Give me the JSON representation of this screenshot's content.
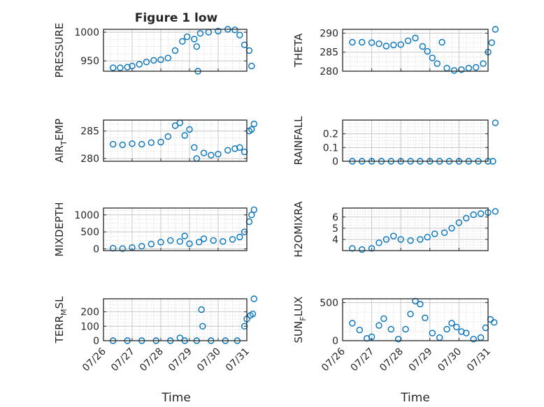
{
  "figure_title": "Figure 1 low",
  "marker_color": "#0072bd",
  "xlabel": "Time",
  "x_ticks": [
    "07/26",
    "07/27",
    "07/28",
    "07/29",
    "07/30",
    "07/31"
  ],
  "chart_data": [
    {
      "type": "scatter",
      "ylabel": "PRESSURE",
      "ylim": [
        932,
        1005
      ],
      "yticks": [
        950,
        1000
      ],
      "xlim": [
        "2018-07-26",
        "2018-07-31"
      ],
      "grid": true,
      "minor_grid": true,
      "points": [
        [
          "2018-07-26T08:00",
          938
        ],
        [
          "2018-07-26T14:00",
          938
        ],
        [
          "2018-07-26T20:00",
          939
        ],
        [
          "2018-07-27T00:00",
          941
        ],
        [
          "2018-07-27T06:00",
          944
        ],
        [
          "2018-07-27T12:00",
          948
        ],
        [
          "2018-07-27T18:00",
          951
        ],
        [
          "2018-07-28T00:00",
          952
        ],
        [
          "2018-07-28T06:00",
          955
        ],
        [
          "2018-07-28T12:00",
          968
        ],
        [
          "2018-07-28T18:00",
          984
        ],
        [
          "2018-07-28T22:00",
          992
        ],
        [
          "2018-07-29T04:00",
          988
        ],
        [
          "2018-07-29T06:00",
          975
        ],
        [
          "2018-07-29T07:00",
          932
        ],
        [
          "2018-07-29T09:00",
          998
        ],
        [
          "2018-07-29T16:00",
          1000
        ],
        [
          "2018-07-30T00:00",
          1002
        ],
        [
          "2018-07-30T08:00",
          1005
        ],
        [
          "2018-07-30T14:00",
          1004
        ],
        [
          "2018-07-30T18:00",
          995
        ],
        [
          "2018-07-30T22:00",
          978
        ],
        [
          "2018-07-31T02:00",
          968
        ],
        [
          "2018-07-31T04:00",
          941
        ]
      ]
    },
    {
      "type": "scatter",
      "ylabel": "THETA",
      "ylim": [
        280,
        291
      ],
      "yticks": [
        280,
        285,
        290
      ],
      "xlim": [
        "2018-07-26",
        "2018-07-31"
      ],
      "grid": true,
      "minor_grid": true,
      "points": [
        [
          "2018-07-26T08:00",
          287.6
        ],
        [
          "2018-07-26T16:00",
          287.6
        ],
        [
          "2018-07-27T00:00",
          287.5
        ],
        [
          "2018-07-27T06:00",
          287.2
        ],
        [
          "2018-07-27T12:00",
          286.6
        ],
        [
          "2018-07-27T18:00",
          286.9
        ],
        [
          "2018-07-28T00:00",
          287.0
        ],
        [
          "2018-07-28T06:00",
          288.0
        ],
        [
          "2018-07-28T12:00",
          288.7
        ],
        [
          "2018-07-28T18:00",
          286.5
        ],
        [
          "2018-07-28T22:00",
          285.2
        ],
        [
          "2018-07-29T02:00",
          283.5
        ],
        [
          "2018-07-29T06:00",
          282.0
        ],
        [
          "2018-07-29T10:00",
          287.6
        ],
        [
          "2018-07-29T14:00",
          280.8
        ],
        [
          "2018-07-29T20:00",
          280.2
        ],
        [
          "2018-07-30T02:00",
          280.4
        ],
        [
          "2018-07-30T08:00",
          280.8
        ],
        [
          "2018-07-30T14:00",
          281.0
        ],
        [
          "2018-07-30T20:00",
          282.0
        ],
        [
          "2018-07-31T00:00",
          285.0
        ],
        [
          "2018-07-31T03:00",
          287.5
        ],
        [
          "2018-07-31T06:00",
          291.0
        ]
      ]
    },
    {
      "type": "scatter",
      "ylabel": "AIR_TEMP",
      "ylim": [
        279.5,
        287
      ],
      "yticks": [
        280,
        285
      ],
      "xlim": [
        "2018-07-26",
        "2018-07-31"
      ],
      "grid": true,
      "minor_grid": true,
      "points": [
        [
          "2018-07-26T08:00",
          282.6
        ],
        [
          "2018-07-26T16:00",
          282.5
        ],
        [
          "2018-07-27T00:00",
          282.7
        ],
        [
          "2018-07-27T08:00",
          282.6
        ],
        [
          "2018-07-27T16:00",
          282.9
        ],
        [
          "2018-07-28T00:00",
          283.0
        ],
        [
          "2018-07-28T06:00",
          284.0
        ],
        [
          "2018-07-28T12:00",
          286.0
        ],
        [
          "2018-07-28T16:00",
          286.5
        ],
        [
          "2018-07-28T20:00",
          284.2
        ],
        [
          "2018-07-29T00:00",
          285.3
        ],
        [
          "2018-07-29T04:00",
          282.0
        ],
        [
          "2018-07-29T06:00",
          280.0
        ],
        [
          "2018-07-29T12:00",
          281.0
        ],
        [
          "2018-07-29T18:00",
          280.6
        ],
        [
          "2018-07-30T00:00",
          280.8
        ],
        [
          "2018-07-30T08:00",
          281.5
        ],
        [
          "2018-07-30T14:00",
          281.8
        ],
        [
          "2018-07-30T18:00",
          282.0
        ],
        [
          "2018-07-30T22:00",
          281.2
        ],
        [
          "2018-07-31T02:00",
          285.0
        ],
        [
          "2018-07-31T04:00",
          285.3
        ],
        [
          "2018-07-31T06:00",
          286.3
        ]
      ]
    },
    {
      "type": "scatter",
      "ylabel": "RAINFALL",
      "ylim": [
        0,
        0.3
      ],
      "yticks": [
        0,
        0.1,
        0.2
      ],
      "xlim": [
        "2018-07-26",
        "2018-07-31"
      ],
      "grid": true,
      "minor_grid": true,
      "points": [
        [
          "2018-07-26T08:00",
          0
        ],
        [
          "2018-07-26T16:00",
          0
        ],
        [
          "2018-07-27T00:00",
          0
        ],
        [
          "2018-07-27T08:00",
          0
        ],
        [
          "2018-07-27T16:00",
          0
        ],
        [
          "2018-07-28T00:00",
          0
        ],
        [
          "2018-07-28T08:00",
          0
        ],
        [
          "2018-07-28T16:00",
          0
        ],
        [
          "2018-07-29T00:00",
          0
        ],
        [
          "2018-07-29T08:00",
          0
        ],
        [
          "2018-07-29T16:00",
          0
        ],
        [
          "2018-07-30T00:00",
          0
        ],
        [
          "2018-07-30T08:00",
          0
        ],
        [
          "2018-07-30T16:00",
          0
        ],
        [
          "2018-07-31T00:00",
          0
        ],
        [
          "2018-07-31T04:00",
          0
        ],
        [
          "2018-07-31T06:00",
          0.28
        ]
      ]
    },
    {
      "type": "scatter",
      "ylabel": "MIXDEPTH",
      "ylim": [
        -50,
        1200
      ],
      "yticks": [
        0,
        500,
        1000
      ],
      "xlim": [
        "2018-07-26",
        "2018-07-31"
      ],
      "grid": true,
      "minor_grid": true,
      "points": [
        [
          "2018-07-26T08:00",
          20
        ],
        [
          "2018-07-26T16:00",
          10
        ],
        [
          "2018-07-27T00:00",
          40
        ],
        [
          "2018-07-27T08:00",
          80
        ],
        [
          "2018-07-27T16:00",
          140
        ],
        [
          "2018-07-28T00:00",
          200
        ],
        [
          "2018-07-28T08:00",
          250
        ],
        [
          "2018-07-28T16:00",
          220
        ],
        [
          "2018-07-28T20:00",
          380
        ],
        [
          "2018-07-29T00:00",
          150
        ],
        [
          "2018-07-29T08:00",
          200
        ],
        [
          "2018-07-29T12:00",
          300
        ],
        [
          "2018-07-29T20:00",
          250
        ],
        [
          "2018-07-30T04:00",
          220
        ],
        [
          "2018-07-30T12:00",
          280
        ],
        [
          "2018-07-30T18:00",
          350
        ],
        [
          "2018-07-30T22:00",
          500
        ],
        [
          "2018-07-31T02:00",
          800
        ],
        [
          "2018-07-31T04:00",
          1000
        ],
        [
          "2018-07-31T06:00",
          1150
        ]
      ]
    },
    {
      "type": "scatter",
      "ylabel": "H2OMIXRA",
      "ylim": [
        3,
        6.8
      ],
      "yticks": [
        4,
        5,
        6
      ],
      "xlim": [
        "2018-07-26",
        "2018-07-31"
      ],
      "grid": true,
      "minor_grid": true,
      "points": [
        [
          "2018-07-26T08:00",
          3.2
        ],
        [
          "2018-07-26T16:00",
          3.1
        ],
        [
          "2018-07-27T00:00",
          3.2
        ],
        [
          "2018-07-27T06:00",
          3.7
        ],
        [
          "2018-07-27T12:00",
          4.0
        ],
        [
          "2018-07-27T18:00",
          4.3
        ],
        [
          "2018-07-28T00:00",
          4.0
        ],
        [
          "2018-07-28T08:00",
          3.9
        ],
        [
          "2018-07-28T16:00",
          4.0
        ],
        [
          "2018-07-28T22:00",
          4.2
        ],
        [
          "2018-07-29T04:00",
          4.5
        ],
        [
          "2018-07-29T12:00",
          4.6
        ],
        [
          "2018-07-29T18:00",
          5.0
        ],
        [
          "2018-07-30T00:00",
          5.5
        ],
        [
          "2018-07-30T06:00",
          5.9
        ],
        [
          "2018-07-30T12:00",
          6.2
        ],
        [
          "2018-07-30T18:00",
          6.3
        ],
        [
          "2018-07-31T00:00",
          6.4
        ],
        [
          "2018-07-31T06:00",
          6.5
        ]
      ]
    },
    {
      "type": "scatter",
      "ylabel": "TERR_MSL",
      "ylim": [
        0,
        290
      ],
      "yticks": [
        0,
        100,
        200
      ],
      "xlim": [
        "2018-07-26",
        "2018-07-31"
      ],
      "grid": true,
      "minor_grid": true,
      "points": [
        [
          "2018-07-26T08:00",
          0
        ],
        [
          "2018-07-26T20:00",
          0
        ],
        [
          "2018-07-27T08:00",
          0
        ],
        [
          "2018-07-27T20:00",
          0
        ],
        [
          "2018-07-28T08:00",
          0
        ],
        [
          "2018-07-28T16:00",
          20
        ],
        [
          "2018-07-28T20:00",
          0
        ],
        [
          "2018-07-29T06:00",
          0
        ],
        [
          "2018-07-29T10:00",
          215
        ],
        [
          "2018-07-29T11:00",
          100
        ],
        [
          "2018-07-29T18:00",
          0
        ],
        [
          "2018-07-30T06:00",
          0
        ],
        [
          "2018-07-30T16:00",
          0
        ],
        [
          "2018-07-30T22:00",
          100
        ],
        [
          "2018-07-31T00:00",
          150
        ],
        [
          "2018-07-31T03:00",
          175
        ],
        [
          "2018-07-31T05:00",
          185
        ],
        [
          "2018-07-31T06:00",
          290
        ]
      ]
    },
    {
      "type": "scatter",
      "ylabel": "SUN_FLUX",
      "ylim": [
        0,
        550
      ],
      "yticks": [
        0,
        500
      ],
      "xlim": [
        "2018-07-26",
        "2018-07-31"
      ],
      "grid": true,
      "minor_grid": true,
      "points": [
        [
          "2018-07-26T08:00",
          230
        ],
        [
          "2018-07-26T14:00",
          140
        ],
        [
          "2018-07-26T20:00",
          30
        ],
        [
          "2018-07-27T00:00",
          50
        ],
        [
          "2018-07-27T06:00",
          200
        ],
        [
          "2018-07-27T10:00",
          290
        ],
        [
          "2018-07-27T16:00",
          150
        ],
        [
          "2018-07-27T22:00",
          20
        ],
        [
          "2018-07-28T04:00",
          150
        ],
        [
          "2018-07-28T08:00",
          350
        ],
        [
          "2018-07-28T12:00",
          520
        ],
        [
          "2018-07-28T16:00",
          480
        ],
        [
          "2018-07-28T20:00",
          300
        ],
        [
          "2018-07-29T02:00",
          100
        ],
        [
          "2018-07-29T08:00",
          40
        ],
        [
          "2018-07-29T14:00",
          150
        ],
        [
          "2018-07-29T18:00",
          230
        ],
        [
          "2018-07-29T22:00",
          180
        ],
        [
          "2018-07-30T02:00",
          120
        ],
        [
          "2018-07-30T06:00",
          100
        ],
        [
          "2018-07-30T12:00",
          20
        ],
        [
          "2018-07-30T18:00",
          40
        ],
        [
          "2018-07-30T22:00",
          170
        ],
        [
          "2018-07-31T02:00",
          280
        ],
        [
          "2018-07-31T05:00",
          240
        ]
      ]
    }
  ]
}
